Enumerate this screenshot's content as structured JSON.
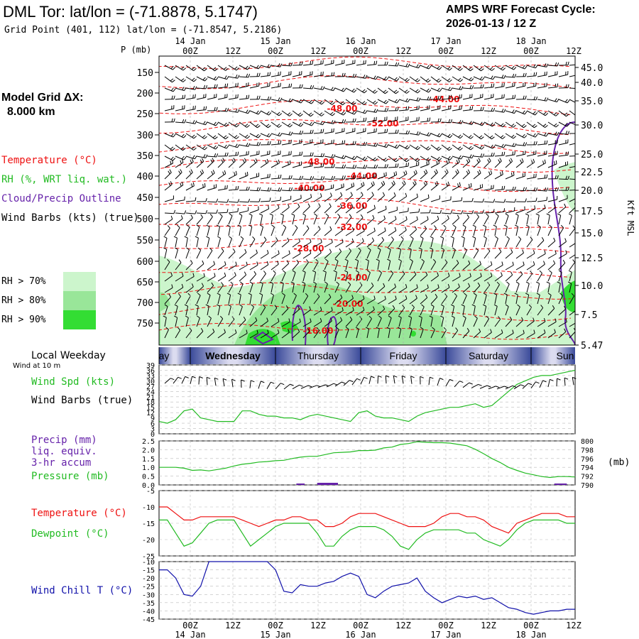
{
  "header": {
    "station_title": "DML Tor:  lat/lon = (-71.8878, 5.1747)",
    "grid_point": "Grid Point (401, 112) lat/lon = (-71.8547, 5.2186)",
    "forecast_label": "AMPS WRF Forecast Cycle:",
    "forecast_cycle": "2026-01-13 / 12  Z"
  },
  "model": {
    "grid_label": "Model Grid ΔX:",
    "grid_value": "8.000 km"
  },
  "legend": {
    "temperature": "Temperature (°C)",
    "rh": "RH (%, WRT liq. wat.)",
    "cloud": "Cloud/Precip Outline",
    "wind": "Wind Barbs (kts) (true)",
    "rh_levels": [
      "RH > 70%",
      "RH > 80%",
      "RH > 90%"
    ]
  },
  "colors": {
    "rh70": "#ccf5cc",
    "rh80": "#99e699",
    "rh90": "#33dd33",
    "temperature": "#ee1111",
    "dewpoint": "#22bb22",
    "windchill": "#1111aa",
    "cloud": "#6622aa",
    "pressure": "#22bb22",
    "windspd": "#22bb22",
    "precip": "#6622aa",
    "weekday_band": "#3a4a9a"
  },
  "time_axis": {
    "labels_hour": [
      "00Z",
      "12Z",
      "00Z",
      "12Z",
      "00Z",
      "12Z",
      "00Z",
      "12Z",
      "00Z",
      "12Z"
    ],
    "labels_date": [
      "14 Jan",
      "15 Jan",
      "16 Jan",
      "17 Jan",
      "18 Jan"
    ]
  },
  "weekday": {
    "title": "Local Weekday",
    "days": [
      "Tuesday",
      "Wednesday",
      "Thursday",
      "Friday",
      "Saturday",
      "Sunday"
    ],
    "visible_text": [
      "ay",
      "Wednesday",
      "Thursday",
      "Friday",
      "Saturday",
      "Sun"
    ]
  },
  "cross_section": {
    "p_axis_label": "P (mb)",
    "p_ticks": [
      "150",
      "200",
      "250",
      "300",
      "350",
      "400",
      "450",
      "500",
      "550",
      "600",
      "650",
      "700",
      "750"
    ],
    "kft_label": "Kft MSL",
    "kft_ticks": [
      "45.0",
      "40.0",
      "35.0",
      "30.0",
      "25.0",
      "22.5",
      "20.0",
      "17.5",
      "15.0",
      "12.5",
      "10.0",
      "7.5",
      "5.47"
    ],
    "isotherm_labels": [
      "-44.00",
      "-48.00",
      "-52.00",
      "-48.00",
      "-44.00",
      "-40.00",
      "-36.00",
      "-32.00",
      "-28.00",
      "-24.00",
      "-20.00",
      "-16.00"
    ]
  },
  "chart_data": [
    {
      "type": "line",
      "title": "Wind Spd (kts)",
      "subtitle": "Wind at 10 m",
      "labels": [
        "Wind Spd (kts)",
        "Wind Barbs (true)"
      ],
      "x_hours": [
        0,
        6,
        12,
        18,
        24,
        30,
        36,
        42,
        48,
        54,
        60,
        66,
        72,
        78,
        84,
        90,
        96,
        102,
        108,
        114,
        120,
        126,
        132,
        138,
        144,
        150,
        156,
        162,
        168,
        174,
        180,
        186,
        192,
        198,
        204,
        210,
        216,
        222,
        228,
        234,
        240,
        246,
        252,
        258,
        264,
        270,
        276,
        282,
        288,
        294,
        300
      ],
      "y": [
        7,
        6,
        8,
        13,
        14,
        9,
        8,
        7,
        7,
        7,
        13,
        13,
        11,
        10,
        10,
        9,
        9,
        8,
        10,
        11,
        10,
        9,
        8,
        7,
        12,
        13,
        10,
        9,
        9,
        8,
        7,
        10,
        12,
        13,
        14,
        15,
        15,
        16,
        17,
        15,
        16,
        20,
        24,
        28,
        30,
        32,
        33,
        33,
        34,
        35,
        36
      ],
      "ylim": [
        0,
        39
      ],
      "y_ticks": [
        "39",
        "36",
        "33",
        "30",
        "27",
        "24",
        "21",
        "18",
        "15",
        "12",
        "9",
        "6",
        "3",
        "0"
      ]
    },
    {
      "type": "line",
      "title": "Pressure (mb)",
      "labels": [
        "Precip (mm)",
        "liq. equiv.",
        "3-hr accum",
        "Pressure (mb)"
      ],
      "unit_right": "(mb)",
      "x_hours": [
        0,
        6,
        12,
        18,
        24,
        30,
        36,
        42,
        48,
        54,
        60,
        66,
        72,
        78,
        84,
        90,
        96,
        102,
        108,
        114,
        120,
        126,
        132,
        138,
        144,
        150,
        156,
        162,
        168,
        174,
        180,
        186,
        192,
        198,
        204,
        210,
        216,
        222,
        228,
        234,
        240,
        246,
        252,
        258,
        264,
        270,
        276,
        282,
        288,
        294,
        300
      ],
      "pressure": [
        794,
        794,
        794,
        793.8,
        793.3,
        793.4,
        793.2,
        793.5,
        793.8,
        794.3,
        794.7,
        794.9,
        795.2,
        795.3,
        795.5,
        795.6,
        796,
        796.3,
        796.5,
        796.5,
        796.9,
        797.3,
        797.4,
        797.5,
        797.8,
        797.8,
        797.9,
        798.4,
        798.6,
        799.2,
        799.4,
        799.8,
        799.7,
        799.6,
        799.6,
        799.5,
        799.2,
        798.9,
        798.1,
        797.1,
        796,
        795.1,
        794,
        793.3,
        792.7,
        792.3,
        791.9,
        791.7,
        791.9,
        791.9,
        791.8
      ],
      "pressure_ylim": [
        790,
        800
      ],
      "pressure_ticks": [
        "800",
        "798",
        "796",
        "794",
        "792",
        "790"
      ],
      "precip_ticks": [
        "2.5",
        "2.0",
        "1.5",
        "1.0",
        "0.5",
        "0.0"
      ],
      "precip_bars": [
        {
          "start": 99,
          "end": 105,
          "mm": 0.08
        },
        {
          "start": 114,
          "end": 129,
          "mm": 0.12
        },
        {
          "start": 285,
          "end": 294,
          "mm": 0.06
        }
      ]
    },
    {
      "type": "line",
      "title": "Temperature / Dewpoint",
      "labels": [
        "Temperature (°C)",
        "Dewpoint (°C)"
      ],
      "x_hours": [
        0,
        6,
        12,
        18,
        24,
        30,
        36,
        42,
        48,
        54,
        60,
        66,
        72,
        78,
        84,
        90,
        96,
        102,
        108,
        114,
        120,
        126,
        132,
        138,
        144,
        150,
        156,
        162,
        168,
        174,
        180,
        186,
        192,
        198,
        204,
        210,
        216,
        222,
        228,
        234,
        240,
        246,
        252,
        258,
        264,
        270,
        276,
        282,
        288,
        294,
        300
      ],
      "temperature": [
        -10,
        -10,
        -12,
        -14,
        -14,
        -13,
        -13,
        -13,
        -13,
        -13,
        -14,
        -15,
        -16,
        -15,
        -14,
        -14,
        -13,
        -13,
        -14,
        -14,
        -16,
        -16,
        -15,
        -13,
        -12,
        -12,
        -12,
        -13,
        -14,
        -15,
        -16,
        -16,
        -16,
        -15,
        -13,
        -12,
        -12,
        -13,
        -13,
        -14,
        -16,
        -17,
        -18,
        -15,
        -14,
        -13,
        -12,
        -12,
        -12,
        -13,
        -13
      ],
      "dewpoint": [
        -14,
        -14,
        -18,
        -22,
        -21,
        -18,
        -15,
        -14,
        -14,
        -14,
        -18,
        -22,
        -20,
        -18,
        -16,
        -15,
        -15,
        -15,
        -15,
        -18,
        -22,
        -22,
        -19,
        -17,
        -16,
        -16,
        -16,
        -17,
        -19,
        -22,
        -23,
        -20,
        -18,
        -17,
        -17,
        -17,
        -17,
        -18,
        -18,
        -20,
        -21,
        -22,
        -20,
        -17,
        -15,
        -14,
        -14,
        -14,
        -14,
        -15,
        -15
      ],
      "ylim": [
        -25,
        -5
      ],
      "y_ticks": [
        "-5",
        "-10",
        "-15",
        "-20",
        "-25"
      ]
    },
    {
      "type": "line",
      "title": "Wind Chill T (°C)",
      "labels": [
        "Wind Chill T (°C)"
      ],
      "x_hours": [
        0,
        6,
        12,
        18,
        24,
        30,
        36,
        42,
        48,
        54,
        60,
        66,
        72,
        78,
        84,
        90,
        96,
        102,
        108,
        114,
        120,
        126,
        132,
        138,
        144,
        150,
        156,
        162,
        168,
        174,
        180,
        186,
        192,
        198,
        204,
        210,
        216,
        222,
        228,
        234,
        240,
        246,
        252,
        258,
        264,
        270,
        276,
        282,
        288,
        294,
        300
      ],
      "y": [
        -15,
        -15,
        -20,
        -30,
        -31,
        -25,
        -10,
        -10,
        -10,
        -10,
        -10,
        -10,
        -10,
        -10,
        -15,
        -28,
        -29,
        -24,
        -25,
        -25,
        -23,
        -22,
        -19,
        -17,
        -19,
        -30,
        -32,
        -28,
        -25,
        -24,
        -23,
        -20,
        -28,
        -32,
        -35,
        -33,
        -31,
        -32,
        -31,
        -33,
        -32,
        -35,
        -38,
        -39,
        -41,
        -42,
        -41,
        -40,
        -40,
        -39,
        -39
      ],
      "ylim": [
        -45,
        -10
      ],
      "y_ticks": [
        "-10",
        "-15",
        "-20",
        "-25",
        "-30",
        "-35",
        "-40",
        "-45"
      ]
    }
  ]
}
